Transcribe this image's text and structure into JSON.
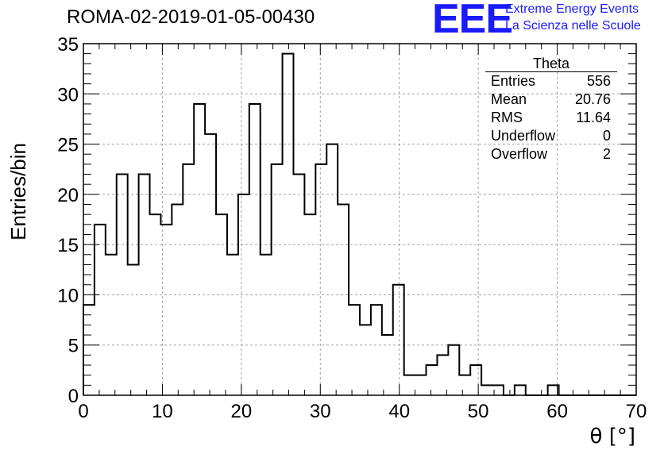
{
  "header": {
    "title": "ROMA-02-2019-01-05-00430",
    "logo_text": "EEE",
    "org_line1": "Extreme Energy Events",
    "org_line2": "La Scienza nelle Scuole"
  },
  "stats": {
    "name": "Theta",
    "rows": [
      {
        "label": "Entries",
        "value": "556"
      },
      {
        "label": "Mean",
        "value": "20.76"
      },
      {
        "label": "RMS",
        "value": "11.64"
      },
      {
        "label": "Underflow",
        "value": "0"
      },
      {
        "label": "Overflow",
        "value": "2"
      }
    ]
  },
  "colors": {
    "logo": "#1a1aff",
    "histogram": "#000000",
    "grid": "#a0a0a0"
  },
  "chart_data": {
    "type": "bar",
    "style": "step-histogram",
    "xlabel": "θ [°]",
    "ylabel": "Entries/bin",
    "xlim": [
      0,
      70
    ],
    "ylim": [
      0,
      35
    ],
    "bin_width": 1.4,
    "xticks": [
      0,
      10,
      20,
      30,
      40,
      50,
      60,
      70
    ],
    "yticks": [
      0,
      5,
      10,
      15,
      20,
      25,
      30,
      35
    ],
    "grid": true,
    "values": [
      9,
      17,
      14,
      22,
      13,
      22,
      18,
      17,
      19,
      23,
      29,
      26,
      18,
      14,
      20,
      29,
      14,
      23,
      34,
      22,
      18,
      23,
      25,
      19,
      9,
      7,
      9,
      6,
      11,
      2,
      2,
      3,
      4,
      5,
      2,
      3,
      1,
      1,
      0,
      1,
      0,
      0,
      1,
      0,
      0,
      0,
      0,
      0,
      0,
      0
    ]
  }
}
